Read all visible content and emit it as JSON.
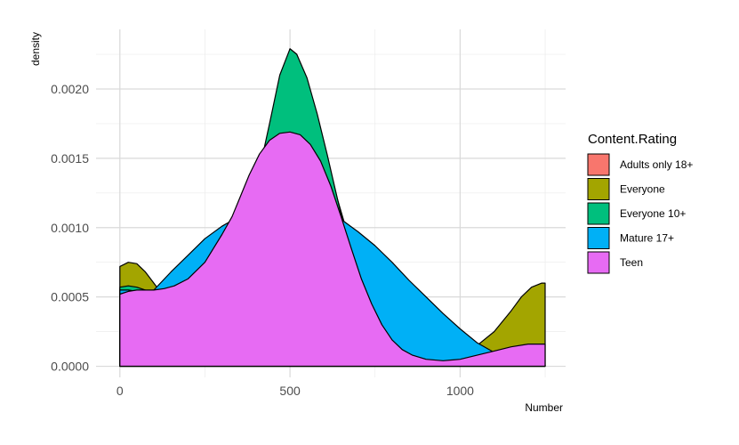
{
  "chart_data": {
    "type": "area",
    "xlabel": "Number",
    "ylabel": "density",
    "xlim": [
      -70,
      1310
    ],
    "ylim": [
      -8e-05,
      0.00243
    ],
    "x_major_ticks": [
      0,
      500,
      1000
    ],
    "x_tick_labels": [
      "0",
      "500",
      "1000"
    ],
    "x_minor_ticks": [
      250,
      750,
      1250
    ],
    "y_major_ticks": [
      0,
      0.0005,
      0.001,
      0.0015,
      0.002
    ],
    "y_tick_labels": [
      "0.0000",
      "0.0005",
      "0.0010",
      "0.0015",
      "0.0020"
    ],
    "y_minor_ticks": [
      0.00025,
      0.00075,
      0.00125,
      0.00175,
      0.00225
    ],
    "grid": true,
    "legend": {
      "title": "Content.Rating",
      "placement": "right",
      "entries": [
        "Adults only 18+",
        "Everyone",
        "Everyone 10+",
        "Mature 17+",
        "Teen"
      ]
    },
    "series": [
      {
        "name": "Adults only 18+",
        "color": "#F8766D",
        "points": []
      },
      {
        "name": "Everyone",
        "color": "#A3A500",
        "points": [
          [
            0,
            0.00072
          ],
          [
            25,
            0.00075
          ],
          [
            50,
            0.00074
          ],
          [
            75,
            0.00068
          ],
          [
            100,
            0.0006
          ],
          [
            130,
            0.0005
          ],
          [
            160,
            0.00043
          ],
          [
            200,
            0.0004
          ],
          [
            250,
            0.00042
          ],
          [
            300,
            0.00052
          ],
          [
            330,
            0.00065
          ],
          [
            360,
            0.00085
          ],
          [
            400,
            0.00115
          ],
          [
            440,
            0.0016
          ],
          [
            470,
            0.002
          ],
          [
            500,
            0.00229
          ],
          [
            520,
            0.00225
          ],
          [
            550,
            0.00205
          ],
          [
            580,
            0.0018
          ],
          [
            610,
            0.0015
          ],
          [
            640,
            0.0012
          ],
          [
            670,
            0.00095
          ],
          [
            700,
            0.0007
          ],
          [
            750,
            0.0004
          ],
          [
            800,
            0.0002
          ],
          [
            850,
            0.0001
          ],
          [
            900,
            6e-05
          ],
          [
            950,
            5e-05
          ],
          [
            1000,
            8e-05
          ],
          [
            1050,
            0.00015
          ],
          [
            1100,
            0.00025
          ],
          [
            1150,
            0.0004
          ],
          [
            1180,
            0.0005
          ],
          [
            1210,
            0.00057
          ],
          [
            1240,
            0.0006
          ],
          [
            1250,
            0.0006
          ]
        ]
      },
      {
        "name": "Everyone 10+",
        "color": "#00BF7D",
        "points": [
          [
            0,
            0.00057
          ],
          [
            25,
            0.00058
          ],
          [
            50,
            0.00057
          ],
          [
            75,
            0.00055
          ],
          [
            100,
            0.00053
          ],
          [
            150,
            0.0005
          ],
          [
            200,
            0.00048
          ],
          [
            250,
            0.00052
          ],
          [
            300,
            0.00062
          ],
          [
            330,
            0.00075
          ],
          [
            360,
            0.00095
          ],
          [
            400,
            0.0013
          ],
          [
            440,
            0.00175
          ],
          [
            470,
            0.0021
          ],
          [
            500,
            0.00229
          ],
          [
            520,
            0.00225
          ],
          [
            550,
            0.00208
          ],
          [
            580,
            0.00182
          ],
          [
            610,
            0.00152
          ],
          [
            640,
            0.0012
          ],
          [
            670,
            0.0009
          ],
          [
            700,
            0.00062
          ],
          [
            750,
            0.0003
          ],
          [
            800,
            0.00012
          ],
          [
            850,
            4e-05
          ],
          [
            900,
            1e-05
          ],
          [
            950,
            0.0
          ],
          [
            1250,
            0.0
          ]
        ]
      },
      {
        "name": "Mature 17+",
        "color": "#00B0F6",
        "points": [
          [
            0,
            0.00055
          ],
          [
            25,
            0.00055
          ],
          [
            50,
            0.00054
          ],
          [
            75,
            0.00054
          ],
          [
            100,
            0.00055
          ],
          [
            150,
            0.00068
          ],
          [
            200,
            0.0008
          ],
          [
            250,
            0.00092
          ],
          [
            300,
            0.00101
          ],
          [
            350,
            0.00108
          ],
          [
            400,
            0.00112
          ],
          [
            450,
            0.00114
          ],
          [
            500,
            0.00115
          ],
          [
            550,
            0.00114
          ],
          [
            600,
            0.00111
          ],
          [
            650,
            0.00106
          ],
          [
            700,
            0.00097
          ],
          [
            750,
            0.00087
          ],
          [
            800,
            0.00075
          ],
          [
            850,
            0.00062
          ],
          [
            900,
            0.0005
          ],
          [
            950,
            0.00038
          ],
          [
            1000,
            0.00027
          ],
          [
            1050,
            0.00017
          ],
          [
            1100,
            0.0001
          ],
          [
            1150,
            6e-05
          ],
          [
            1200,
            3e-05
          ],
          [
            1250,
            1e-05
          ]
        ]
      },
      {
        "name": "Teen",
        "color": "#E76BF3",
        "points": [
          [
            0,
            0.00052
          ],
          [
            25,
            0.00054
          ],
          [
            50,
            0.00055
          ],
          [
            75,
            0.00055
          ],
          [
            100,
            0.00055
          ],
          [
            130,
            0.00056
          ],
          [
            160,
            0.00058
          ],
          [
            200,
            0.00063
          ],
          [
            250,
            0.00075
          ],
          [
            300,
            0.00095
          ],
          [
            330,
            0.00108
          ],
          [
            350,
            0.0012
          ],
          [
            380,
            0.00138
          ],
          [
            410,
            0.00153
          ],
          [
            440,
            0.00163
          ],
          [
            470,
            0.00168
          ],
          [
            500,
            0.00169
          ],
          [
            530,
            0.00167
          ],
          [
            560,
            0.0016
          ],
          [
            590,
            0.00148
          ],
          [
            620,
            0.0013
          ],
          [
            650,
            0.00108
          ],
          [
            680,
            0.00085
          ],
          [
            710,
            0.00063
          ],
          [
            740,
            0.00045
          ],
          [
            770,
            0.0003
          ],
          [
            800,
            0.00019
          ],
          [
            830,
            0.00012
          ],
          [
            860,
            8e-05
          ],
          [
            900,
            5e-05
          ],
          [
            950,
            4e-05
          ],
          [
            1000,
            5e-05
          ],
          [
            1050,
            8e-05
          ],
          [
            1100,
            0.00011
          ],
          [
            1150,
            0.00014
          ],
          [
            1200,
            0.00016
          ],
          [
            1250,
            0.00016
          ]
        ]
      }
    ]
  }
}
